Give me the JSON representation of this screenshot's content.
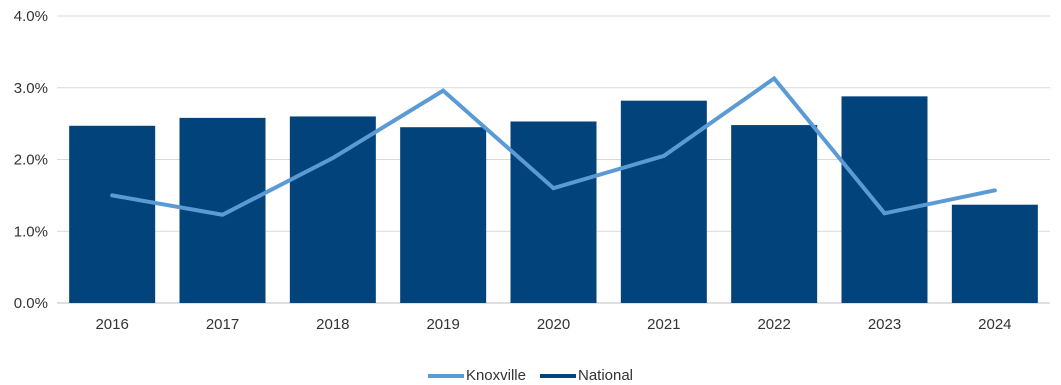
{
  "chart_data": {
    "type": "bar",
    "categories": [
      "2016",
      "2017",
      "2018",
      "2019",
      "2020",
      "2021",
      "2022",
      "2023",
      "2024"
    ],
    "series": [
      {
        "name": "National",
        "type": "bar",
        "color": "#03437B",
        "values": [
          2.47,
          2.58,
          2.6,
          2.45,
          2.53,
          2.82,
          2.48,
          2.88,
          1.37
        ]
      },
      {
        "name": "Knoxville",
        "type": "line",
        "color": "#5B9BD5",
        "values": [
          1.5,
          1.23,
          2.02,
          2.96,
          1.6,
          2.05,
          3.13,
          1.25,
          1.57
        ]
      }
    ],
    "y_ticks": [
      "0.0%",
      "1.0%",
      "2.0%",
      "3.0%",
      "4.0%"
    ],
    "ylim": [
      0,
      4
    ],
    "legend_order": [
      "Knoxville",
      "National"
    ],
    "legend_position": "bottom",
    "grid": true,
    "gridline_color": "#D9D9D9",
    "axis_color": "#BFBFBF"
  }
}
